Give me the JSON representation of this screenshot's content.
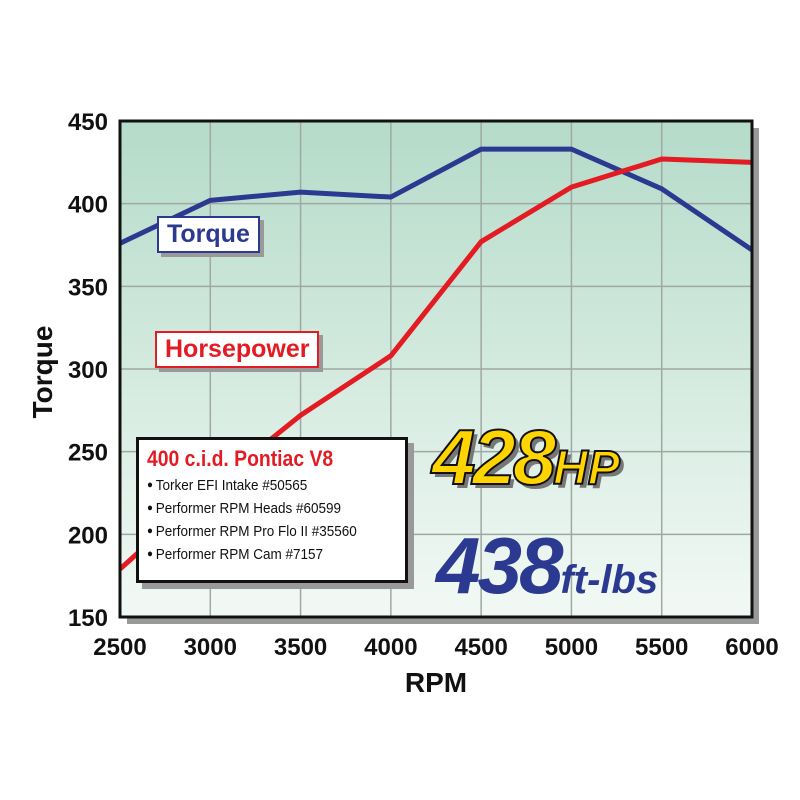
{
  "chart_data": {
    "type": "line",
    "xlabel": "RPM",
    "ylabel": "Torque",
    "x": [
      2500,
      3000,
      3500,
      4000,
      4500,
      5000,
      5500,
      6000
    ],
    "xlim": [
      2500,
      6000
    ],
    "ylim": [
      150,
      450
    ],
    "xticks": [
      "2500",
      "3000",
      "3500",
      "4000",
      "4500",
      "5000",
      "5500",
      "6000"
    ],
    "yticks": [
      "150",
      "200",
      "250",
      "300",
      "350",
      "400",
      "450"
    ],
    "grid": true,
    "series": [
      {
        "name": "Torque",
        "color": "#2b3990",
        "values": [
          376,
          402,
          407,
          404,
          433,
          433,
          409,
          372
        ]
      },
      {
        "name": "Horsepower",
        "color": "#e31b23",
        "values": [
          179,
          228,
          272,
          308,
          377,
          410,
          427,
          425
        ]
      }
    ],
    "annotations": {
      "hp_value": "428",
      "hp_unit": "HP",
      "tq_value": "438",
      "tq_unit": "ft-lbs"
    }
  },
  "spec_box": {
    "title": "400 c.i.d. Pontiac V8",
    "items": [
      "Torker EFI Intake #50565",
      "Performer RPM Heads #60599",
      "Performer RPM Pro Flo II #35560",
      "Performer RPM Cam #7157"
    ]
  }
}
